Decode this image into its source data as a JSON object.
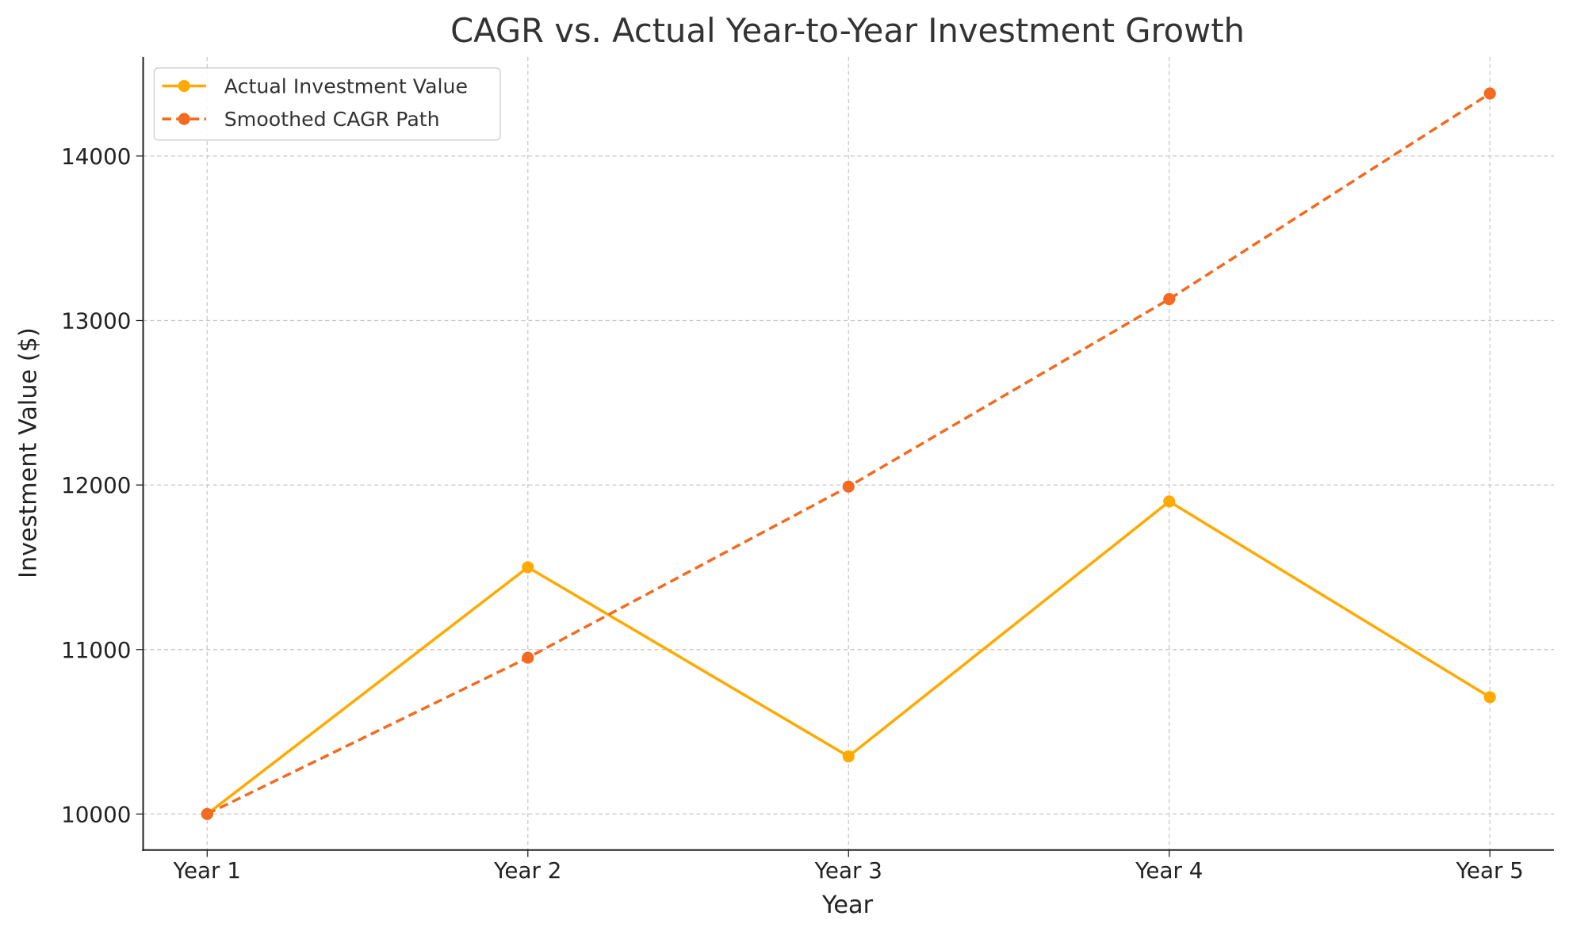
{
  "chart_data": {
    "type": "line",
    "title": "CAGR vs. Actual Year-to-Year Investment Growth",
    "xlabel": "Year",
    "ylabel": "Investment Value ($)",
    "categories": [
      "Year 1",
      "Year 2",
      "Year 3",
      "Year 4",
      "Year 5"
    ],
    "ylim": [
      9780,
      14600
    ],
    "yticks": [
      10000,
      11000,
      12000,
      13000,
      14000
    ],
    "ytick_labels": [
      "10000",
      "11000",
      "12000",
      "13000",
      "14000"
    ],
    "grid": true,
    "legend_placement": "top-left",
    "series": [
      {
        "name": "Actual Investment Value",
        "values": [
          10000,
          11500,
          10350,
          11900,
          10710
        ],
        "color": "#FFAA00",
        "style": "solid",
        "marker": "circle"
      },
      {
        "name": "Smoothed CAGR Path",
        "values": [
          10000,
          10950,
          11990,
          13130,
          14380
        ],
        "color": "#F26B21",
        "style": "dashed",
        "marker": "circle"
      }
    ]
  }
}
